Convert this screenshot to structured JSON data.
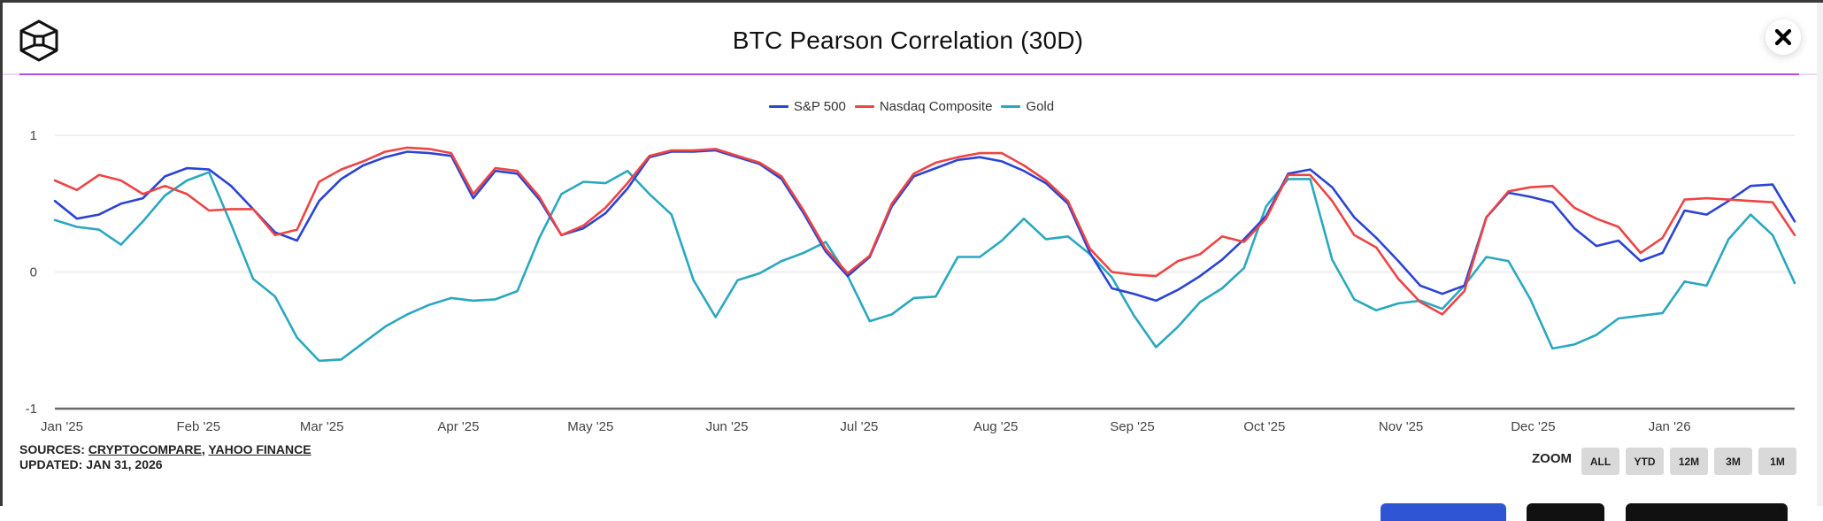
{
  "header": {
    "title": "BTC Pearson Correlation (30D)",
    "logo": "tesseract-cube-logo",
    "close_icon": "close-icon"
  },
  "footer": {
    "sources_label": "SOURCES:",
    "sources": [
      "CRYPTOCOMPARE",
      "YAHOO FINANCE"
    ],
    "updated_label": "UPDATED:",
    "updated_value": "JAN 31, 2026"
  },
  "zoom": {
    "label": "ZOOM",
    "options": [
      "ALL",
      "YTD",
      "12M",
      "3M",
      "1M"
    ]
  },
  "colors": {
    "sp500": "#2b44d3",
    "nasdaq": "#ee4444",
    "gold": "#2aa8bf",
    "divider": "#b04ee8",
    "bottom_primary": "#2f55d4",
    "bottom_dark": "#111111"
  },
  "chart_data": {
    "type": "line",
    "title": "BTC Pearson Correlation (30D)",
    "xlabel": "",
    "ylabel": "",
    "ylim": [
      -1,
      1
    ],
    "yticks": [
      "1",
      "0",
      "-1"
    ],
    "ytick_values": [
      1,
      0,
      -1
    ],
    "grid": true,
    "legend_position": "top-center",
    "xlim": [
      "2025-01-01",
      "2026-01-31"
    ],
    "xticks": [
      {
        "date": "2025-01-01",
        "label": "Jan '25"
      },
      {
        "date": "2025-02-01",
        "label": "Feb '25"
      },
      {
        "date": "2025-03-01",
        "label": "Mar '25"
      },
      {
        "date": "2025-04-01",
        "label": "Apr '25"
      },
      {
        "date": "2025-05-01",
        "label": "May '25"
      },
      {
        "date": "2025-06-01",
        "label": "Jun '25"
      },
      {
        "date": "2025-07-01",
        "label": "Jul '25"
      },
      {
        "date": "2025-08-01",
        "label": "Aug '25"
      },
      {
        "date": "2025-09-01",
        "label": "Sep '25"
      },
      {
        "date": "2025-10-01",
        "label": "Oct '25"
      },
      {
        "date": "2025-11-01",
        "label": "Nov '25"
      },
      {
        "date": "2025-12-01",
        "label": "Dec '25"
      },
      {
        "date": "2026-01-01",
        "label": "Jan '26"
      }
    ],
    "x": [
      "2025-01-01",
      "2025-01-06",
      "2025-01-11",
      "2025-01-16",
      "2025-01-21",
      "2025-01-26",
      "2025-01-31",
      "2025-02-05",
      "2025-02-10",
      "2025-02-15",
      "2025-02-20",
      "2025-02-25",
      "2025-03-02",
      "2025-03-07",
      "2025-03-12",
      "2025-03-17",
      "2025-03-22",
      "2025-03-27",
      "2025-04-01",
      "2025-04-06",
      "2025-04-11",
      "2025-04-16",
      "2025-04-21",
      "2025-04-26",
      "2025-05-01",
      "2025-05-06",
      "2025-05-11",
      "2025-05-16",
      "2025-05-21",
      "2025-05-26",
      "2025-05-31",
      "2025-06-05",
      "2025-06-10",
      "2025-06-15",
      "2025-06-20",
      "2025-06-25",
      "2025-06-30",
      "2025-07-05",
      "2025-07-10",
      "2025-07-15",
      "2025-07-20",
      "2025-07-25",
      "2025-07-30",
      "2025-08-04",
      "2025-08-09",
      "2025-08-14",
      "2025-08-19",
      "2025-08-24",
      "2025-08-29",
      "2025-09-03",
      "2025-09-08",
      "2025-09-13",
      "2025-09-18",
      "2025-09-23",
      "2025-09-28",
      "2025-10-03",
      "2025-10-08",
      "2025-10-13",
      "2025-10-18",
      "2025-10-23",
      "2025-10-28",
      "2025-11-02",
      "2025-11-07",
      "2025-11-12",
      "2025-11-17",
      "2025-11-22",
      "2025-11-27",
      "2025-12-02",
      "2025-12-07",
      "2025-12-12",
      "2025-12-17",
      "2025-12-22",
      "2025-12-27",
      "2026-01-01",
      "2026-01-06",
      "2026-01-11",
      "2026-01-16",
      "2026-01-21",
      "2026-01-26",
      "2026-01-31"
    ],
    "series": [
      {
        "name": "S&P 500",
        "color": "#2b44d3",
        "values": [
          0.52,
          0.39,
          0.42,
          0.5,
          0.54,
          0.7,
          0.76,
          0.75,
          0.63,
          0.46,
          0.29,
          0.23,
          0.52,
          0.68,
          0.78,
          0.84,
          0.88,
          0.87,
          0.85,
          0.54,
          0.74,
          0.72,
          0.53,
          0.27,
          0.32,
          0.43,
          0.61,
          0.84,
          0.88,
          0.88,
          0.89,
          0.84,
          0.79,
          0.68,
          0.43,
          0.15,
          -0.03,
          0.11,
          0.48,
          0.7,
          0.76,
          0.82,
          0.84,
          0.81,
          0.74,
          0.65,
          0.5,
          0.14,
          -0.12,
          -0.16,
          -0.21,
          -0.13,
          -0.03,
          0.09,
          0.24,
          0.41,
          0.72,
          0.75,
          0.62,
          0.4,
          0.25,
          0.08,
          -0.1,
          -0.16,
          -0.1,
          0.4,
          0.58,
          0.55,
          0.51,
          0.32,
          0.19,
          0.23,
          0.08,
          0.14,
          0.45,
          0.42,
          0.52,
          0.63,
          0.64,
          0.37
        ]
      },
      {
        "name": "Nasdaq Composite",
        "color": "#ee4444",
        "values": [
          0.67,
          0.6,
          0.71,
          0.67,
          0.57,
          0.63,
          0.57,
          0.45,
          0.46,
          0.46,
          0.27,
          0.31,
          0.66,
          0.75,
          0.81,
          0.88,
          0.91,
          0.9,
          0.87,
          0.57,
          0.76,
          0.74,
          0.55,
          0.27,
          0.34,
          0.47,
          0.65,
          0.85,
          0.89,
          0.89,
          0.9,
          0.85,
          0.8,
          0.7,
          0.45,
          0.17,
          -0.01,
          0.12,
          0.5,
          0.72,
          0.8,
          0.84,
          0.87,
          0.87,
          0.78,
          0.67,
          0.52,
          0.17,
          0.0,
          -0.02,
          -0.03,
          0.08,
          0.13,
          0.26,
          0.22,
          0.39,
          0.71,
          0.71,
          0.52,
          0.27,
          0.18,
          -0.05,
          -0.22,
          -0.31,
          -0.14,
          0.4,
          0.59,
          0.62,
          0.63,
          0.47,
          0.39,
          0.33,
          0.14,
          0.25,
          0.53,
          0.54,
          0.53,
          0.52,
          0.51,
          0.27
        ]
      },
      {
        "name": "Gold",
        "color": "#2aa8bf",
        "values": [
          0.38,
          0.33,
          0.31,
          0.2,
          0.37,
          0.56,
          0.67,
          0.73,
          0.35,
          -0.05,
          -0.18,
          -0.48,
          -0.65,
          -0.64,
          -0.52,
          -0.4,
          -0.31,
          -0.24,
          -0.19,
          -0.21,
          -0.2,
          -0.14,
          0.25,
          0.57,
          0.66,
          0.65,
          0.74,
          0.57,
          0.42,
          -0.06,
          -0.33,
          -0.06,
          -0.01,
          0.08,
          0.14,
          0.22,
          -0.03,
          -0.36,
          -0.31,
          -0.19,
          -0.18,
          0.11,
          0.11,
          0.23,
          0.39,
          0.24,
          0.26,
          0.13,
          -0.04,
          -0.32,
          -0.55,
          -0.4,
          -0.22,
          -0.12,
          0.03,
          0.48,
          0.68,
          0.68,
          0.09,
          -0.2,
          -0.28,
          -0.23,
          -0.21,
          -0.27,
          -0.1,
          0.11,
          0.08,
          -0.2,
          -0.56,
          -0.53,
          -0.46,
          -0.34,
          -0.32,
          -0.3,
          -0.07,
          -0.1,
          0.24,
          0.42,
          0.27,
          -0.08
        ]
      }
    ]
  }
}
